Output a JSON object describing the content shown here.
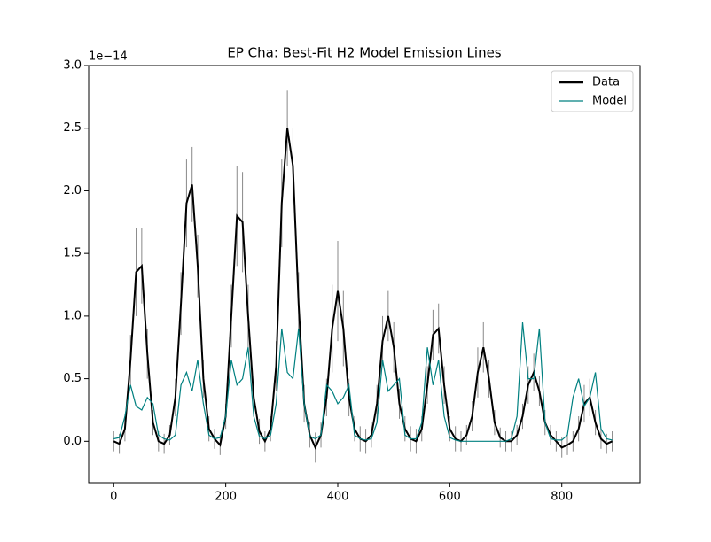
{
  "chart_data": {
    "type": "line",
    "title": "EP Cha: Best-Fit H2 Model Emission Lines",
    "offset_label": "1e−14",
    "x": [
      0,
      10,
      20,
      30,
      40,
      50,
      60,
      70,
      80,
      90,
      100,
      110,
      120,
      130,
      140,
      150,
      160,
      170,
      180,
      190,
      200,
      210,
      220,
      230,
      240,
      250,
      260,
      270,
      280,
      290,
      300,
      310,
      320,
      330,
      340,
      350,
      360,
      370,
      380,
      390,
      400,
      410,
      420,
      430,
      440,
      450,
      460,
      470,
      480,
      490,
      500,
      510,
      520,
      530,
      540,
      550,
      560,
      570,
      580,
      590,
      600,
      610,
      620,
      630,
      640,
      650,
      660,
      670,
      680,
      690,
      700,
      710,
      720,
      730,
      740,
      750,
      760,
      770,
      780,
      790,
      800,
      810,
      820,
      830,
      840,
      850,
      860,
      870,
      880,
      890
    ],
    "series": [
      {
        "name": "Data",
        "color": "#000000",
        "values": [
          0.0,
          -0.02,
          0.1,
          0.65,
          1.35,
          1.4,
          0.7,
          0.15,
          0.0,
          -0.02,
          0.05,
          0.35,
          1.1,
          1.9,
          2.05,
          1.4,
          0.5,
          0.1,
          0.02,
          -0.03,
          0.2,
          1.0,
          1.8,
          1.75,
          1.0,
          0.35,
          0.08,
          0.0,
          0.1,
          0.6,
          1.9,
          2.5,
          2.2,
          1.1,
          0.3,
          0.05,
          -0.05,
          0.05,
          0.35,
          0.9,
          1.2,
          0.9,
          0.35,
          0.1,
          0.02,
          0.0,
          0.05,
          0.3,
          0.8,
          1.0,
          0.75,
          0.3,
          0.1,
          0.02,
          0.0,
          0.1,
          0.45,
          0.85,
          0.9,
          0.45,
          0.1,
          0.02,
          0.0,
          0.05,
          0.2,
          0.55,
          0.75,
          0.5,
          0.15,
          0.03,
          0.0,
          0.0,
          0.05,
          0.2,
          0.45,
          0.55,
          0.4,
          0.15,
          0.05,
          0.0,
          -0.05,
          -0.03,
          0.0,
          0.1,
          0.3,
          0.35,
          0.15,
          0.02,
          -0.02,
          0.0
        ],
        "errors": [
          0.08,
          0.08,
          0.1,
          0.2,
          0.35,
          0.3,
          0.2,
          0.1,
          0.08,
          0.08,
          0.08,
          0.15,
          0.25,
          0.35,
          0.3,
          0.25,
          0.15,
          0.1,
          0.08,
          0.08,
          0.1,
          0.25,
          0.4,
          0.4,
          0.25,
          0.15,
          0.1,
          0.08,
          0.1,
          0.2,
          0.35,
          0.3,
          0.3,
          0.25,
          0.15,
          0.1,
          0.12,
          0.1,
          0.15,
          0.35,
          0.4,
          0.3,
          0.15,
          0.1,
          0.1,
          0.1,
          0.1,
          0.15,
          0.2,
          0.2,
          0.2,
          0.12,
          0.1,
          0.1,
          0.1,
          0.1,
          0.15,
          0.2,
          0.2,
          0.15,
          0.1,
          0.1,
          0.08,
          0.08,
          0.12,
          0.2,
          0.2,
          0.15,
          0.1,
          0.08,
          0.08,
          0.08,
          0.08,
          0.1,
          0.15,
          0.15,
          0.12,
          0.1,
          0.08,
          0.08,
          0.08,
          0.08,
          0.08,
          0.1,
          0.15,
          0.15,
          0.1,
          0.08,
          0.08,
          0.08
        ]
      },
      {
        "name": "Model",
        "color": "#008080",
        "values": [
          0.02,
          0.03,
          0.2,
          0.45,
          0.28,
          0.25,
          0.35,
          0.3,
          0.05,
          0.02,
          0.01,
          0.05,
          0.45,
          0.55,
          0.4,
          0.65,
          0.3,
          0.05,
          0.02,
          0.03,
          0.2,
          0.65,
          0.45,
          0.5,
          0.75,
          0.2,
          0.04,
          0.02,
          0.05,
          0.3,
          0.9,
          0.55,
          0.5,
          0.9,
          0.3,
          0.04,
          0.02,
          0.05,
          0.45,
          0.4,
          0.3,
          0.35,
          0.45,
          0.05,
          0.02,
          0.01,
          0.02,
          0.15,
          0.65,
          0.4,
          0.45,
          0.5,
          0.05,
          0.02,
          0.02,
          0.15,
          0.75,
          0.45,
          0.65,
          0.2,
          0.03,
          0.01,
          0.0,
          0.0,
          0.0,
          0.0,
          0.0,
          0.0,
          0.0,
          0.0,
          0.0,
          0.02,
          0.2,
          0.95,
          0.5,
          0.5,
          0.9,
          0.15,
          0.02,
          0.01,
          0.01,
          0.05,
          0.35,
          0.5,
          0.28,
          0.35,
          0.55,
          0.1,
          0.02,
          0.01
        ]
      }
    ],
    "xlim": [
      -44.75,
      939.75
    ],
    "xticks": [
      0,
      200,
      400,
      600,
      800
    ],
    "ylim": [
      -0.33,
      3.0
    ],
    "yticks": [
      {
        "value": 0,
        "label": "0.0"
      },
      0.5,
      {
        "value": 1,
        "label": "1.0"
      },
      1.5,
      {
        "value": 2,
        "label": "2.0"
      },
      2.5,
      {
        "value": 3,
        "label": "3.0"
      }
    ],
    "legend": "upper right"
  }
}
